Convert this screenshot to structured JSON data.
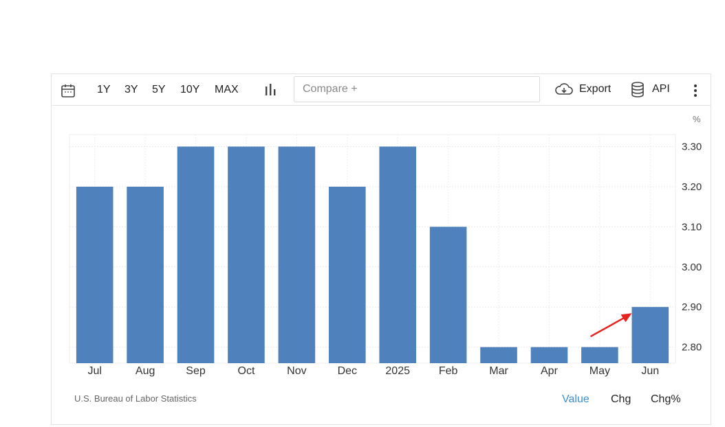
{
  "toolbar": {
    "ranges": [
      "1Y",
      "3Y",
      "5Y",
      "10Y",
      "MAX"
    ],
    "compare_placeholder": "Compare +",
    "export_label": "Export",
    "api_label": "API"
  },
  "chart_data": {
    "type": "bar",
    "categories": [
      "Jul",
      "Aug",
      "Sep",
      "Oct",
      "Nov",
      "Dec",
      "2025",
      "Feb",
      "Mar",
      "Apr",
      "May",
      "Jun"
    ],
    "values": [
      3.2,
      3.2,
      3.3,
      3.3,
      3.3,
      3.2,
      3.3,
      3.1,
      2.8,
      2.8,
      2.8,
      2.9
    ],
    "unit": "%",
    "y_ticks": [
      "3.30",
      "3.20",
      "3.10",
      "3.00",
      "2.90",
      "2.80"
    ],
    "ylim": [
      2.76,
      3.33
    ],
    "bar_color": "#4f81bd",
    "grid": true,
    "annotation": "red-arrow pointing to Jun bar",
    "annotation_color": "#e8231f"
  },
  "source": "U.S. Bureau of Labor Statistics",
  "value_tabs": [
    "Value",
    "Chg",
    "Chg%"
  ],
  "active_tab": "Value"
}
